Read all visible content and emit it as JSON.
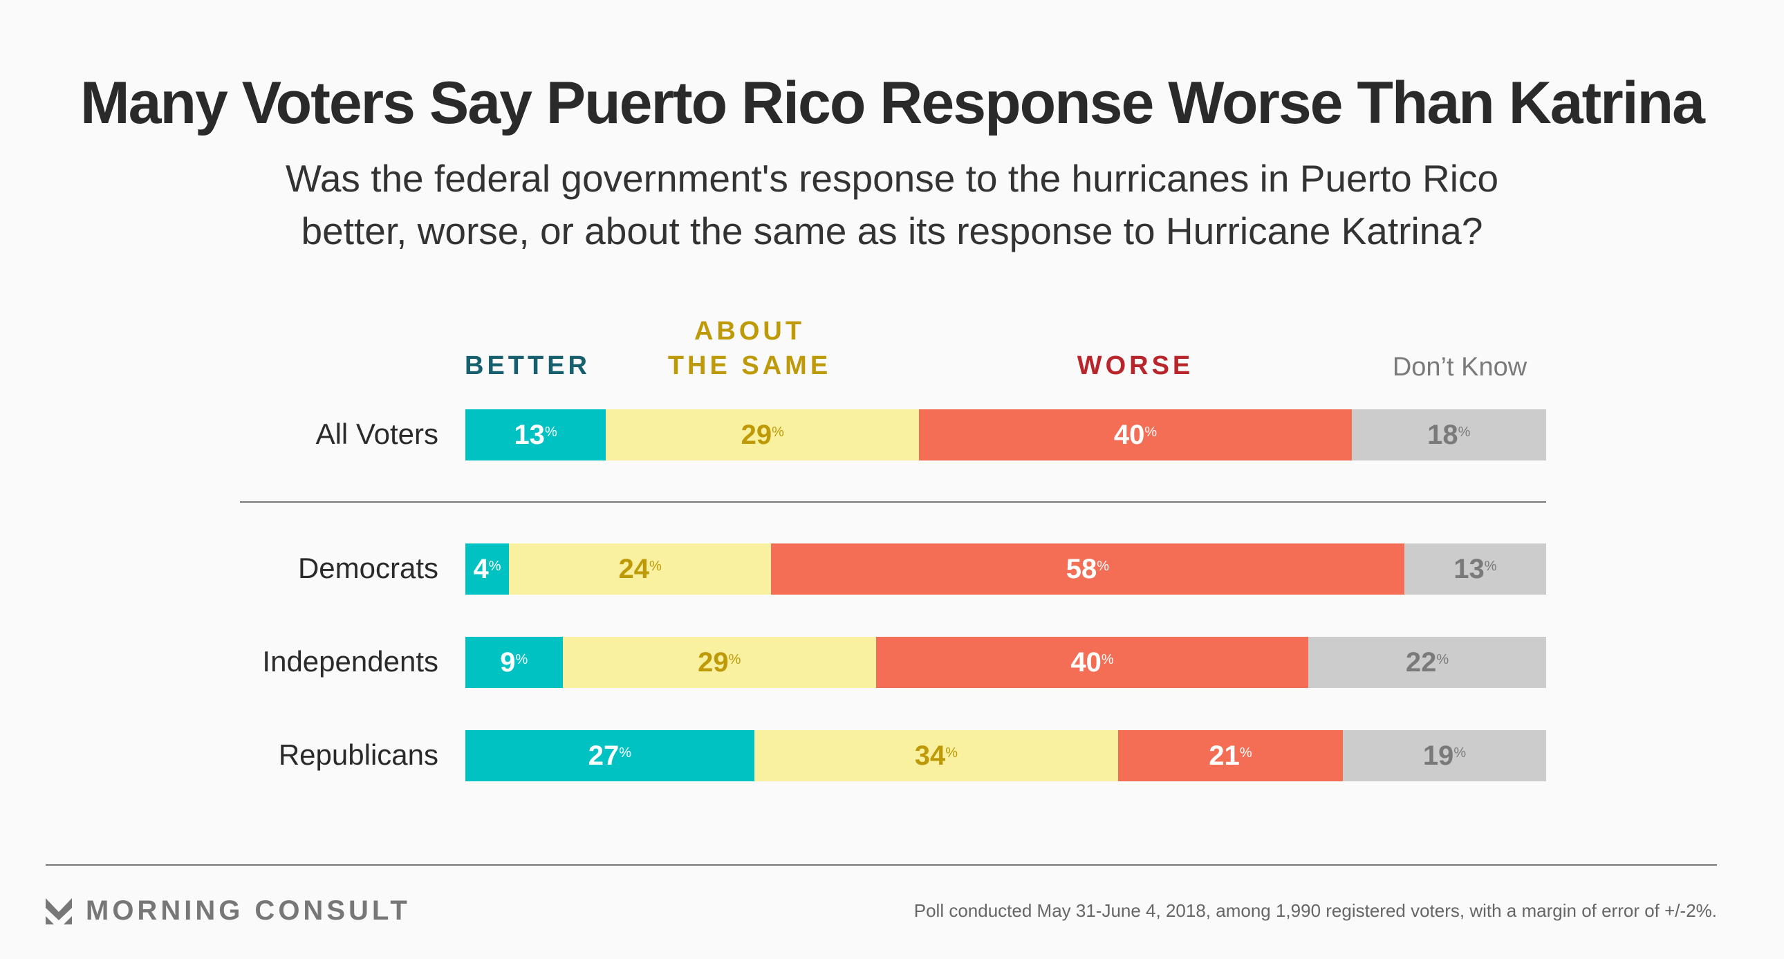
{
  "header": {
    "title": "Many Voters Say Puerto Rico Response Worse Than Katrina",
    "subtitle_line1": "Was the federal government's response to the hurricanes in Puerto Rico",
    "subtitle_line2": "better, worse, or about the same as its response to Hurricane Katrina?"
  },
  "chart_data": {
    "type": "bar",
    "orientation": "horizontal-stacked-100",
    "title": "Many Voters Say Puerto Rico Response Worse Than Katrina",
    "categories": [
      "All Voters",
      "Democrats",
      "Independents",
      "Republicans"
    ],
    "series": [
      {
        "name": "BETTER",
        "values": [
          13,
          4,
          9,
          27
        ],
        "color": "#00c2c2",
        "label_color": "#ffffff",
        "legend_color": "#155f6e"
      },
      {
        "name": "ABOUT THE SAME",
        "values": [
          29,
          24,
          29,
          34
        ],
        "color": "#f9f0a0",
        "label_color": "#bf9a08",
        "legend_color": "#bf9a08"
      },
      {
        "name": "WORSE",
        "values": [
          40,
          58,
          40,
          21
        ],
        "color": "#f46d55",
        "label_color": "#ffffff",
        "legend_color": "#b8252a"
      },
      {
        "name": "Don’t Know",
        "values": [
          18,
          13,
          22,
          19
        ],
        "color": "#cccccc",
        "label_color": "#7a7a7a",
        "legend_color": "#7a7a7a"
      }
    ],
    "value_suffix": "%",
    "legend_placement": "top",
    "grid": false
  },
  "legend": {
    "better": "BETTER",
    "same_line1": "ABOUT",
    "same_line2": "THE SAME",
    "worse": "WORSE",
    "dont_know": "Don’t Know"
  },
  "footer": {
    "brand": "MORNING CONSULT",
    "note": "Poll conducted May 31-June 4, 2018, among 1,990 registered voters, with a margin of error of +/-2%."
  }
}
